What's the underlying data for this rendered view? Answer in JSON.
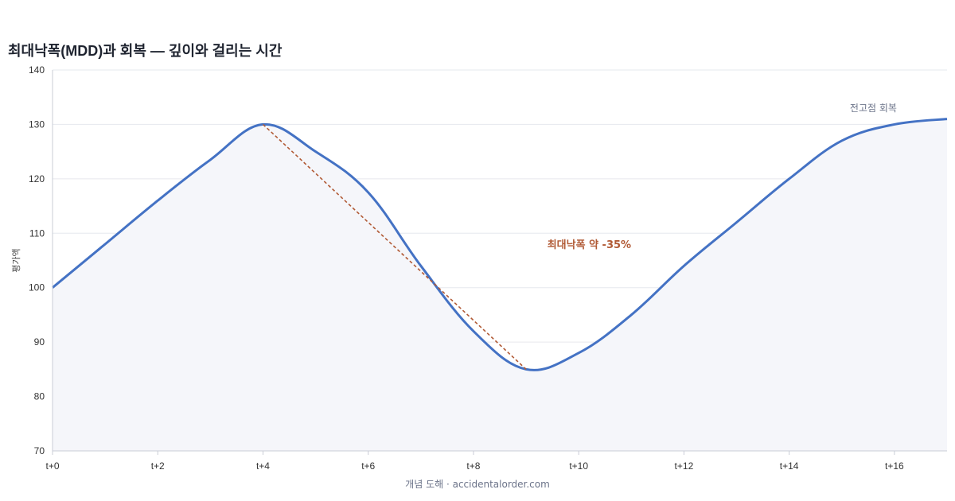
{
  "chart_data": {
    "type": "area",
    "title": "최대낙폭(MDD)과 회복 — 깊이와 걸리는 시간",
    "ylabel": "평가액",
    "xlabel": "",
    "ylim": [
      70,
      140
    ],
    "yticks": [
      70,
      80,
      90,
      100,
      110,
      120,
      130,
      140
    ],
    "xlim": [
      0,
      17
    ],
    "xticks": [
      0,
      2,
      4,
      6,
      8,
      10,
      12,
      14,
      16
    ],
    "xtick_labels": [
      "t+0",
      "t+2",
      "t+4",
      "t+6",
      "t+8",
      "t+10",
      "t+12",
      "t+14",
      "t+16"
    ],
    "grid": true,
    "series": [
      {
        "x": [
          0,
          1,
          2,
          3,
          4,
          5,
          6,
          7,
          8,
          9,
          10,
          11,
          12,
          13,
          14,
          15,
          16,
          17
        ],
        "values": [
          100,
          108,
          116,
          123.5,
          130,
          125,
          117.5,
          104,
          92,
          85,
          88,
          95,
          104,
          112,
          120,
          127,
          130,
          131
        ],
        "color": "#4472c4",
        "fill": "#f5f6fa"
      }
    ],
    "annotations": [
      {
        "type": "dashed-line",
        "from": [
          4,
          130
        ],
        "to": [
          9,
          85
        ],
        "color": "#b15a35",
        "text": "최대낙폭 약 -35%",
        "text_at": [
          10.2,
          108
        ]
      },
      {
        "type": "text",
        "text": "전고점 회복",
        "text_at": [
          15.6,
          133
        ]
      }
    ]
  },
  "footer": "개념 도해 · accidentalorder.com"
}
